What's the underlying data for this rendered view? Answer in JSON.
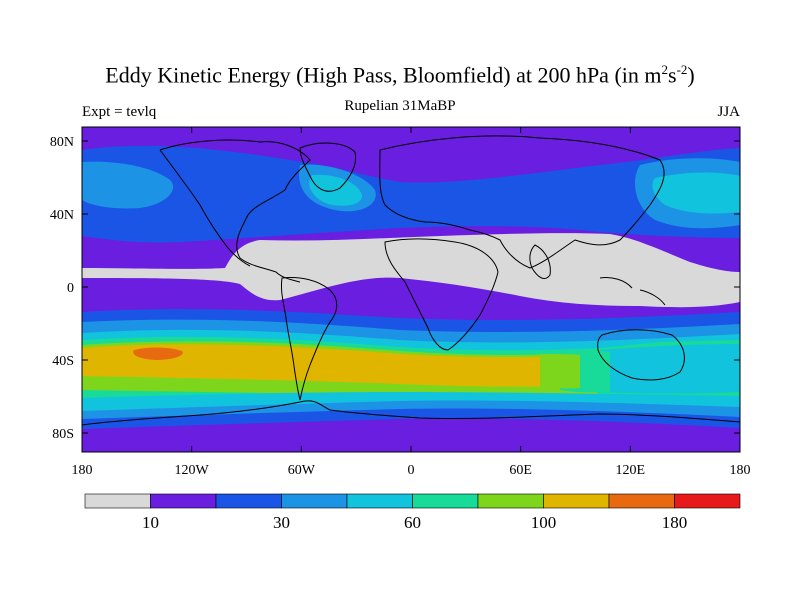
{
  "header": {
    "title_main": "Eddy Kinetic Energy (High Pass, Bloomfield) at 200 hPa (in m",
    "title_sup1": "2",
    "title_mid": "s",
    "title_sup2": "-2",
    "title_end": ")",
    "subtitle": "Rupelian 31MaBP",
    "left_label": "Expt = tevlq",
    "right_label": "JJA"
  },
  "chart_data": {
    "type": "heatmap",
    "title": "Eddy Kinetic Energy (High Pass, Bloomfield) at 200 hPa (in m2s-2)",
    "x_ticks": [
      "180",
      "120W",
      "60W",
      "0",
      "60E",
      "120E",
      "180"
    ],
    "y_ticks": [
      "80N",
      "40N",
      "0",
      "40S",
      "80S"
    ],
    "colorbar": {
      "colors": [
        "#d9d9d9",
        "#6a1ee0",
        "#1a55e6",
        "#1d93e6",
        "#12c3dd",
        "#18db9a",
        "#7ed61c",
        "#e0b500",
        "#e86a10",
        "#e61a1a"
      ],
      "tick_labels": [
        "10",
        "30",
        "60",
        "100",
        "180"
      ]
    }
  }
}
